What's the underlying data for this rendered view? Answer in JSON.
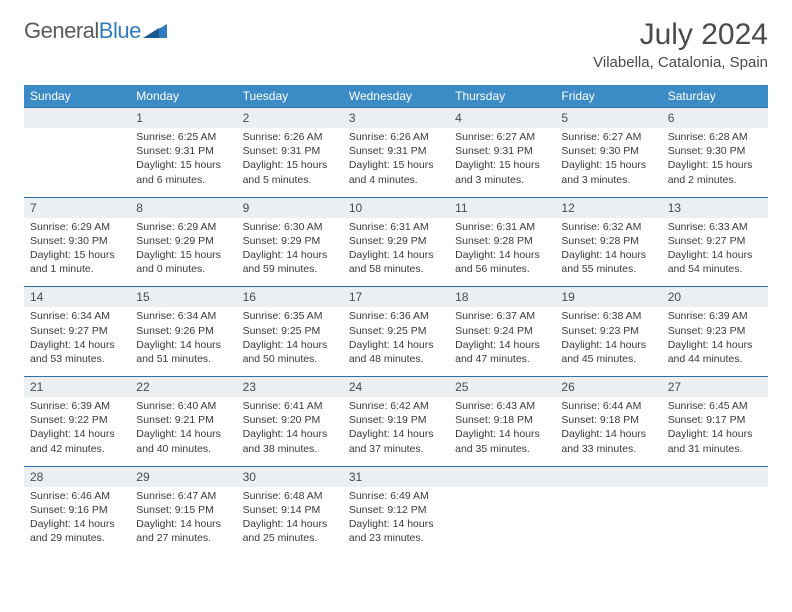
{
  "brand": {
    "part1": "General",
    "part2": "Blue"
  },
  "title": "July 2024",
  "location": "Vilabella, Catalonia, Spain",
  "colors": {
    "header_bg": "#3b8bc6",
    "header_text": "#ffffff",
    "daynum_bg": "#eceff1",
    "daynum_border": "#2f6fa5",
    "body_text": "#3a3a3a",
    "title_text": "#4a4a4a",
    "brand_gray": "#5a5a5a",
    "brand_blue": "#2f7dc0",
    "page_bg": "#ffffff"
  },
  "typography": {
    "title_fontsize": 30,
    "location_fontsize": 15,
    "dow_fontsize": 12,
    "cell_fontsize": 10.5,
    "logo_fontsize": 22
  },
  "days_of_week": [
    "Sunday",
    "Monday",
    "Tuesday",
    "Wednesday",
    "Thursday",
    "Friday",
    "Saturday"
  ],
  "weeks": [
    {
      "nums": [
        "",
        "1",
        "2",
        "3",
        "4",
        "5",
        "6"
      ],
      "cells": [
        {
          "sunrise": "",
          "sunset": "",
          "daylight": ""
        },
        {
          "sunrise": "Sunrise: 6:25 AM",
          "sunset": "Sunset: 9:31 PM",
          "daylight": "Daylight: 15 hours and 6 minutes."
        },
        {
          "sunrise": "Sunrise: 6:26 AM",
          "sunset": "Sunset: 9:31 PM",
          "daylight": "Daylight: 15 hours and 5 minutes."
        },
        {
          "sunrise": "Sunrise: 6:26 AM",
          "sunset": "Sunset: 9:31 PM",
          "daylight": "Daylight: 15 hours and 4 minutes."
        },
        {
          "sunrise": "Sunrise: 6:27 AM",
          "sunset": "Sunset: 9:31 PM",
          "daylight": "Daylight: 15 hours and 3 minutes."
        },
        {
          "sunrise": "Sunrise: 6:27 AM",
          "sunset": "Sunset: 9:30 PM",
          "daylight": "Daylight: 15 hours and 3 minutes."
        },
        {
          "sunrise": "Sunrise: 6:28 AM",
          "sunset": "Sunset: 9:30 PM",
          "daylight": "Daylight: 15 hours and 2 minutes."
        }
      ]
    },
    {
      "nums": [
        "7",
        "8",
        "9",
        "10",
        "11",
        "12",
        "13"
      ],
      "cells": [
        {
          "sunrise": "Sunrise: 6:29 AM",
          "sunset": "Sunset: 9:30 PM",
          "daylight": "Daylight: 15 hours and 1 minute."
        },
        {
          "sunrise": "Sunrise: 6:29 AM",
          "sunset": "Sunset: 9:29 PM",
          "daylight": "Daylight: 15 hours and 0 minutes."
        },
        {
          "sunrise": "Sunrise: 6:30 AM",
          "sunset": "Sunset: 9:29 PM",
          "daylight": "Daylight: 14 hours and 59 minutes."
        },
        {
          "sunrise": "Sunrise: 6:31 AM",
          "sunset": "Sunset: 9:29 PM",
          "daylight": "Daylight: 14 hours and 58 minutes."
        },
        {
          "sunrise": "Sunrise: 6:31 AM",
          "sunset": "Sunset: 9:28 PM",
          "daylight": "Daylight: 14 hours and 56 minutes."
        },
        {
          "sunrise": "Sunrise: 6:32 AM",
          "sunset": "Sunset: 9:28 PM",
          "daylight": "Daylight: 14 hours and 55 minutes."
        },
        {
          "sunrise": "Sunrise: 6:33 AM",
          "sunset": "Sunset: 9:27 PM",
          "daylight": "Daylight: 14 hours and 54 minutes."
        }
      ]
    },
    {
      "nums": [
        "14",
        "15",
        "16",
        "17",
        "18",
        "19",
        "20"
      ],
      "cells": [
        {
          "sunrise": "Sunrise: 6:34 AM",
          "sunset": "Sunset: 9:27 PM",
          "daylight": "Daylight: 14 hours and 53 minutes."
        },
        {
          "sunrise": "Sunrise: 6:34 AM",
          "sunset": "Sunset: 9:26 PM",
          "daylight": "Daylight: 14 hours and 51 minutes."
        },
        {
          "sunrise": "Sunrise: 6:35 AM",
          "sunset": "Sunset: 9:25 PM",
          "daylight": "Daylight: 14 hours and 50 minutes."
        },
        {
          "sunrise": "Sunrise: 6:36 AM",
          "sunset": "Sunset: 9:25 PM",
          "daylight": "Daylight: 14 hours and 48 minutes."
        },
        {
          "sunrise": "Sunrise: 6:37 AM",
          "sunset": "Sunset: 9:24 PM",
          "daylight": "Daylight: 14 hours and 47 minutes."
        },
        {
          "sunrise": "Sunrise: 6:38 AM",
          "sunset": "Sunset: 9:23 PM",
          "daylight": "Daylight: 14 hours and 45 minutes."
        },
        {
          "sunrise": "Sunrise: 6:39 AM",
          "sunset": "Sunset: 9:23 PM",
          "daylight": "Daylight: 14 hours and 44 minutes."
        }
      ]
    },
    {
      "nums": [
        "21",
        "22",
        "23",
        "24",
        "25",
        "26",
        "27"
      ],
      "cells": [
        {
          "sunrise": "Sunrise: 6:39 AM",
          "sunset": "Sunset: 9:22 PM",
          "daylight": "Daylight: 14 hours and 42 minutes."
        },
        {
          "sunrise": "Sunrise: 6:40 AM",
          "sunset": "Sunset: 9:21 PM",
          "daylight": "Daylight: 14 hours and 40 minutes."
        },
        {
          "sunrise": "Sunrise: 6:41 AM",
          "sunset": "Sunset: 9:20 PM",
          "daylight": "Daylight: 14 hours and 38 minutes."
        },
        {
          "sunrise": "Sunrise: 6:42 AM",
          "sunset": "Sunset: 9:19 PM",
          "daylight": "Daylight: 14 hours and 37 minutes."
        },
        {
          "sunrise": "Sunrise: 6:43 AM",
          "sunset": "Sunset: 9:18 PM",
          "daylight": "Daylight: 14 hours and 35 minutes."
        },
        {
          "sunrise": "Sunrise: 6:44 AM",
          "sunset": "Sunset: 9:18 PM",
          "daylight": "Daylight: 14 hours and 33 minutes."
        },
        {
          "sunrise": "Sunrise: 6:45 AM",
          "sunset": "Sunset: 9:17 PM",
          "daylight": "Daylight: 14 hours and 31 minutes."
        }
      ]
    },
    {
      "nums": [
        "28",
        "29",
        "30",
        "31",
        "",
        "",
        ""
      ],
      "cells": [
        {
          "sunrise": "Sunrise: 6:46 AM",
          "sunset": "Sunset: 9:16 PM",
          "daylight": "Daylight: 14 hours and 29 minutes."
        },
        {
          "sunrise": "Sunrise: 6:47 AM",
          "sunset": "Sunset: 9:15 PM",
          "daylight": "Daylight: 14 hours and 27 minutes."
        },
        {
          "sunrise": "Sunrise: 6:48 AM",
          "sunset": "Sunset: 9:14 PM",
          "daylight": "Daylight: 14 hours and 25 minutes."
        },
        {
          "sunrise": "Sunrise: 6:49 AM",
          "sunset": "Sunset: 9:12 PM",
          "daylight": "Daylight: 14 hours and 23 minutes."
        },
        {
          "sunrise": "",
          "sunset": "",
          "daylight": ""
        },
        {
          "sunrise": "",
          "sunset": "",
          "daylight": ""
        },
        {
          "sunrise": "",
          "sunset": "",
          "daylight": ""
        }
      ]
    }
  ]
}
